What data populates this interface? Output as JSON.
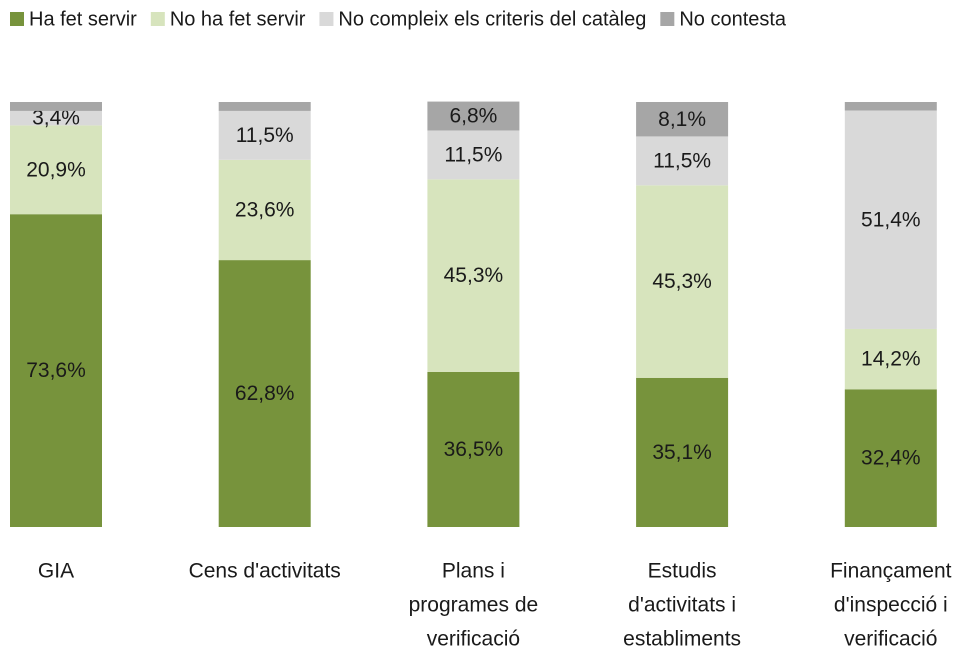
{
  "chart_data": {
    "type": "stacked_bar",
    "categories": [
      [
        "GIA"
      ],
      [
        "Cens d'activitats"
      ],
      [
        "Plans i",
        "programes de",
        "verificació"
      ],
      [
        "Estudis",
        "d'activitats i",
        "establiments"
      ],
      [
        "Finançament",
        "d'inspecció i",
        "verificació"
      ]
    ],
    "ylim": [
      0,
      100
    ],
    "legend": "top",
    "series": [
      {
        "name": "Ha fet servir",
        "color": "#77933c",
        "values": [
          73.6,
          62.8,
          36.5,
          35.1,
          32.4
        ],
        "value_labels": [
          "73,6%",
          "62,8%",
          "36,5%",
          "35,1%",
          "32,4%"
        ]
      },
      {
        "name": "No ha fet servir",
        "color": "#d7e4bd",
        "values": [
          20.9,
          23.6,
          45.3,
          45.3,
          14.2
        ],
        "value_labels": [
          "20,9%",
          "23,6%",
          "45,3%",
          "45,3%",
          "14,2%"
        ]
      },
      {
        "name": "No compleix els criteris del catàleg",
        "color": "#d9d9d9",
        "values": [
          3.4,
          11.5,
          11.5,
          11.5,
          51.4
        ],
        "value_labels": [
          "3,4%",
          "11,5%",
          "11,5%",
          "11,5%",
          "51,4%"
        ]
      },
      {
        "name": "No contesta",
        "color": "#a6a6a6",
        "values": [
          2.1,
          2.1,
          6.8,
          8.1,
          2.0
        ],
        "value_labels": [
          null,
          null,
          "6,8%",
          "8,1%",
          null
        ]
      }
    ]
  }
}
